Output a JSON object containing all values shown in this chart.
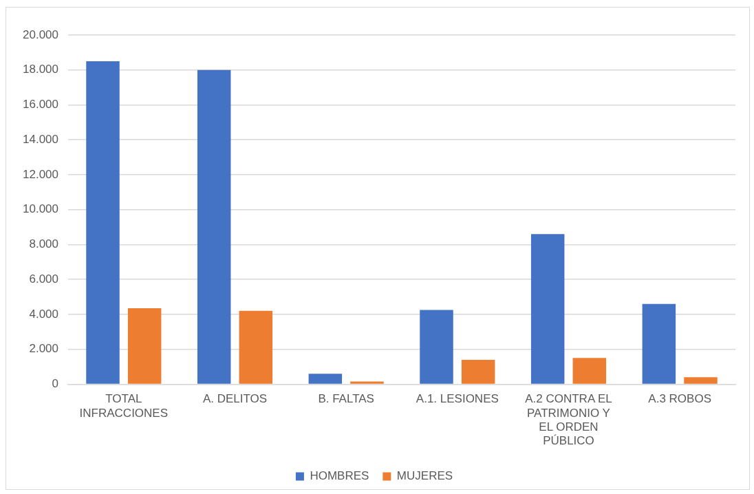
{
  "chart_data": {
    "type": "bar",
    "categories": [
      "TOTAL INFRACCIONES",
      "A. DELITOS",
      "B. FALTAS",
      "A.1. LESIONES",
      "A.2 CONTRA EL PATRIMONIO Y EL ORDEN PÚBLICO",
      "A.3 ROBOS"
    ],
    "series": [
      {
        "name": "HOMBRES",
        "color": "#4472c4",
        "values": [
          18500,
          18000,
          600,
          4250,
          8600,
          4600
        ]
      },
      {
        "name": "MUJERES",
        "color": "#ed7d31",
        "values": [
          4350,
          4200,
          150,
          1400,
          1500,
          400
        ]
      }
    ],
    "ylim": [
      0,
      20000
    ],
    "yticks": [
      {
        "value": 0,
        "label": "0"
      },
      {
        "value": 2000,
        "label": "2.000"
      },
      {
        "value": 4000,
        "label": "4.000"
      },
      {
        "value": 6000,
        "label": "6.000"
      },
      {
        "value": 8000,
        "label": "8.000"
      },
      {
        "value": 10000,
        "label": "10.000"
      },
      {
        "value": 12000,
        "label": "12.000"
      },
      {
        "value": 14000,
        "label": "14.000"
      },
      {
        "value": 16000,
        "label": "16.000"
      },
      {
        "value": 18000,
        "label": "18.000"
      },
      {
        "value": 20000,
        "label": "20.000"
      }
    ],
    "grid": "y",
    "legend": "bottom"
  }
}
